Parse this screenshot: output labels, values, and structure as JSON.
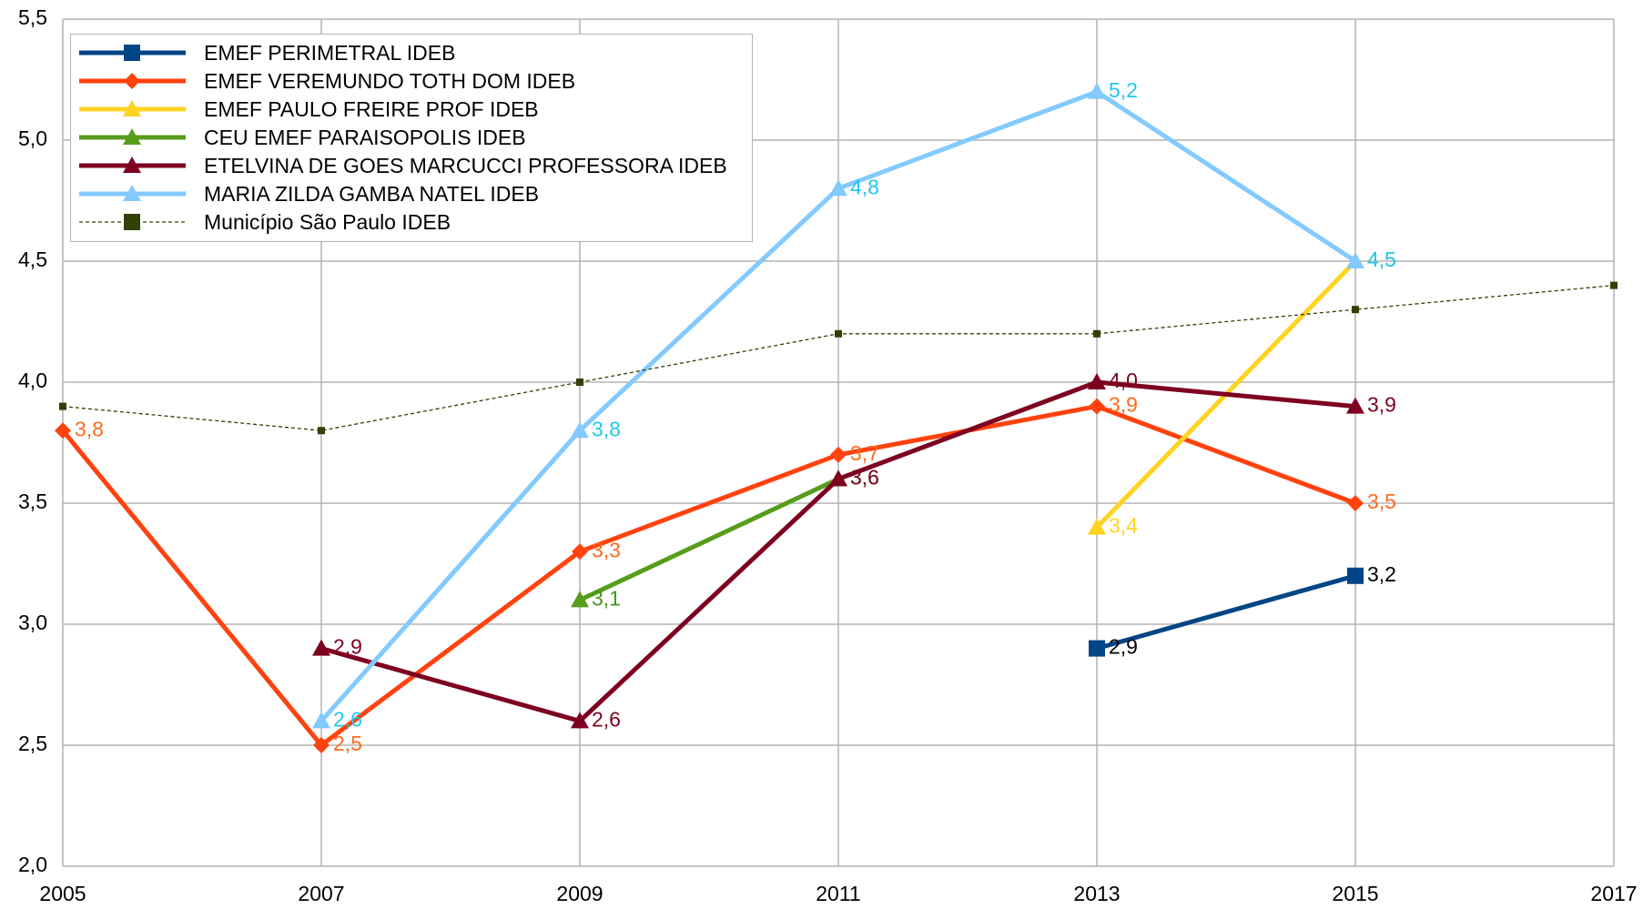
{
  "chart_data": {
    "type": "line",
    "x": [
      2005,
      2007,
      2009,
      2011,
      2013,
      2015,
      2017
    ],
    "xlim": [
      2005,
      2017
    ],
    "xticks": [
      2005,
      2007,
      2009,
      2011,
      2013,
      2015,
      2017
    ],
    "ylim": [
      2,
      5.5
    ],
    "yticks": [
      {
        "value": 2,
        "label": "2,0"
      },
      {
        "value": 2.5,
        "label": "2,5"
      },
      {
        "value": 3,
        "label": "3,0"
      },
      {
        "value": 3.5,
        "label": "3,5"
      },
      {
        "value": 4,
        "label": "4,0"
      },
      {
        "value": 4.5,
        "label": "4,5"
      },
      {
        "value": 5,
        "label": "5,0"
      },
      {
        "value": 5.5,
        "label": "5,5"
      }
    ],
    "grid": true,
    "legend": "top-left",
    "series": [
      {
        "name": "EMEF PERIMETRAL IDEB",
        "color": "#004586",
        "marker": "square",
        "label_color": "#000000",
        "values": [
          null,
          null,
          null,
          null,
          2.9,
          3.2,
          null
        ],
        "value_labels": [
          null,
          null,
          null,
          null,
          "2,9",
          "3,2",
          null
        ]
      },
      {
        "name": "EMEF VEREMUNDO TOTH DOM IDEB",
        "color": "#ff420e",
        "marker": "diamond",
        "label_color": "#ff6a1e",
        "values": [
          3.8,
          2.5,
          3.3,
          3.7,
          3.9,
          3.5,
          null
        ],
        "value_labels": [
          "3,8",
          "2,5",
          "3,3",
          "3,7",
          "3,9",
          "3,5",
          null
        ]
      },
      {
        "name": "EMEF PAULO FREIRE PROF IDEB",
        "color": "#ffd320",
        "marker": "triangle",
        "label_color": "#ffd320",
        "values": [
          null,
          null,
          null,
          null,
          3.4,
          4.5,
          null
        ],
        "value_labels": [
          null,
          null,
          null,
          null,
          "3,4",
          "4,5",
          null
        ]
      },
      {
        "name": "CEU EMEF PARAISOPOLIS IDEB",
        "color": "#579d1c",
        "marker": "triangle",
        "label_color": "#3d9a1c",
        "values": [
          null,
          null,
          3.1,
          3.6,
          null,
          null,
          null
        ],
        "value_labels": [
          null,
          null,
          "3,1",
          "3,6",
          null,
          null,
          null
        ]
      },
      {
        "name": "ETELVINA DE GOES MARCUCCI PROFESSORA IDEB",
        "color": "#7e0021",
        "marker": "triangle",
        "label_color": "#7e0021",
        "values": [
          null,
          2.9,
          2.6,
          3.6,
          4.0,
          3.9,
          null
        ],
        "value_labels": [
          null,
          "2,9",
          "2,6",
          "3,6",
          "4,0",
          "3,9",
          null
        ]
      },
      {
        "name": "MARIA ZILDA GAMBA NATEL IDEB",
        "color": "#83caff",
        "marker": "triangle",
        "label_color": "#1ec8f0",
        "values": [
          null,
          2.6,
          3.8,
          4.8,
          5.2,
          4.5,
          null
        ],
        "value_labels": [
          null,
          "2,6",
          "3,8",
          "4,8",
          "5,2",
          "4,5",
          null
        ]
      },
      {
        "name": "Município São Paulo IDEB",
        "color": "#314004",
        "marker": "small-square",
        "dashed": true,
        "values": [
          3.9,
          3.8,
          4.0,
          4.2,
          4.2,
          4.3,
          4.4
        ]
      }
    ]
  }
}
